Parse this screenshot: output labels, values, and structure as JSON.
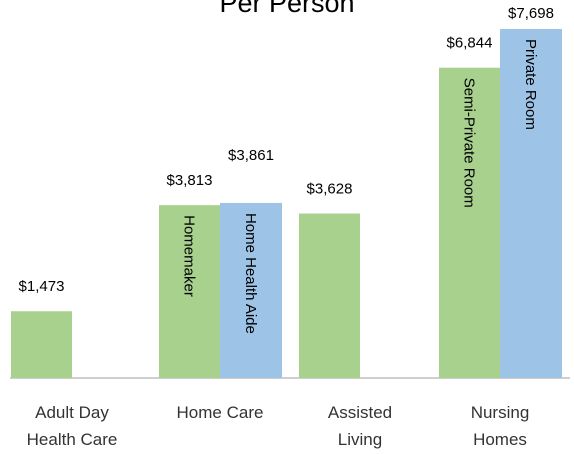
{
  "chart_data": {
    "type": "bar",
    "title": "Per Person",
    "categories": [
      [
        "Adult Day",
        "Health Care"
      ],
      [
        "Home Care"
      ],
      [
        "Assisted",
        "Living"
      ],
      [
        "Nursing",
        "Homes"
      ]
    ],
    "series": [
      {
        "color": "#a9d18e",
        "values": [
          1473,
          3813,
          3628,
          6844
        ],
        "value_labels": [
          "$1,473",
          "$3,813",
          "$3,628",
          "$6,844"
        ],
        "bar_labels": [
          null,
          "Homemaker",
          null,
          "Semi-Private Room"
        ]
      },
      {
        "color": "#9dc3e6",
        "values": [
          null,
          3861,
          null,
          7698
        ],
        "value_labels": [
          null,
          "$3,861",
          null,
          "$7,698"
        ],
        "bar_labels": [
          null,
          "Home Health Aide",
          null,
          "Private Room"
        ]
      }
    ]
  }
}
